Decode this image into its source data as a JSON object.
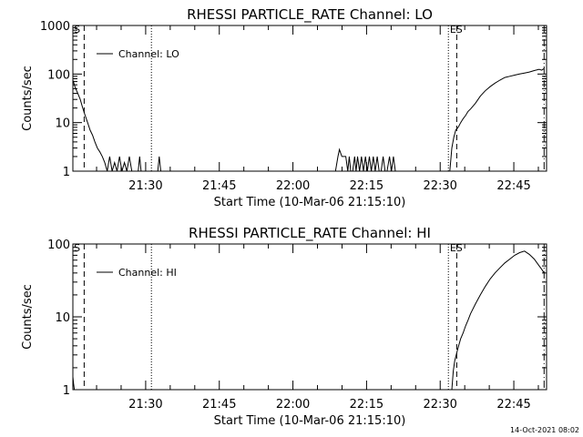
{
  "footer": {
    "timestamp": "14-Oct-2021 08:02"
  },
  "chart_data": [
    {
      "type": "line",
      "title": "RHESSI PARTICLE_RATE Channel: LO",
      "xlabel": "Start Time (10-Mar-06 21:15:10)",
      "ylabel": "Counts/sec",
      "x_unit": "minutes after 21:15:10",
      "xlim": [
        0,
        96.5
      ],
      "ylim": [
        1,
        1000
      ],
      "y_scale": "log",
      "y_ticks": [
        1,
        10,
        100,
        1000
      ],
      "y_tick_labels": [
        "1",
        "10",
        "100",
        "1000"
      ],
      "x_ticks": [
        14.83,
        29.83,
        44.83,
        59.83,
        74.83,
        89.83
      ],
      "x_tick_labels": [
        "21:30",
        "21:45",
        "22:00",
        "22:15",
        "22:30",
        "22:45"
      ],
      "legend": {
        "position": "top-left"
      },
      "series": [
        {
          "name": "Channel: LO",
          "x": [
            0,
            0.5,
            1,
            1.5,
            2,
            2.5,
            3,
            3.5,
            4,
            4.5,
            5,
            5.5,
            6,
            6.5,
            7,
            7.5,
            8,
            8.5,
            9,
            9.5,
            10,
            10.5,
            11,
            11.5,
            12,
            13.3,
            13.6,
            13.9,
            17.3,
            17.6,
            17.9,
            53.5,
            54,
            54.3,
            54.8,
            55.2,
            55.6,
            56,
            56.3,
            56.6,
            57,
            57.4,
            57.7,
            58,
            58.4,
            58.8,
            59.2,
            59.6,
            60,
            60.4,
            60.8,
            61.2,
            61.6,
            62,
            62.4,
            62.8,
            63.2,
            63.6,
            64,
            64.5,
            64.9,
            65.3,
            65.7,
            66.1,
            66.5,
            76.8,
            77.2,
            77.6,
            78,
            78.5,
            79,
            79.5,
            80,
            80.5,
            81,
            82,
            83,
            84,
            85,
            86,
            87,
            88,
            89,
            90,
            91,
            92,
            93,
            94,
            95,
            95.5,
            96
          ],
          "y": [
            75,
            52,
            40,
            30,
            20,
            14,
            10,
            7,
            5.5,
            4,
            3,
            2.5,
            2,
            1.5,
            1,
            2,
            1,
            1.5,
            1,
            2,
            1,
            1.5,
            1,
            2,
            1,
            1,
            2,
            1,
            1,
            2,
            1,
            1,
            2,
            2.8,
            2,
            2,
            2,
            1,
            2,
            1,
            1,
            2,
            1,
            2,
            1,
            2,
            1,
            2,
            1,
            2,
            1,
            2,
            1,
            2,
            1,
            1,
            2,
            1,
            1,
            2,
            1,
            2,
            1,
            1,
            1,
            1,
            3,
            5,
            7,
            8,
            10,
            12,
            14,
            17,
            19,
            25,
            35,
            45,
            55,
            65,
            75,
            85,
            90,
            95,
            100,
            105,
            110,
            118,
            125,
            120,
            130
          ]
        }
      ],
      "vlines": [
        {
          "x": 2.3,
          "style": "dashed"
        },
        {
          "x": 16.0,
          "style": "dotted"
        },
        {
          "x": 76.5,
          "style": "dotted"
        },
        {
          "x": 78.2,
          "style": "dashed"
        },
        {
          "x": 96.0,
          "style": "dashdot"
        }
      ],
      "annotations": [
        {
          "text": "S",
          "x": 0.2
        },
        {
          "text": "ES",
          "x": 76.8
        }
      ]
    },
    {
      "type": "line",
      "title": "RHESSI PARTICLE_RATE Channel: HI",
      "xlabel": "Start Time (10-Mar-06 21:15:10)",
      "ylabel": "Counts/sec",
      "x_unit": "minutes after 21:15:10",
      "xlim": [
        0,
        96.5
      ],
      "ylim": [
        1,
        100
      ],
      "y_scale": "log",
      "y_ticks": [
        1,
        10,
        100
      ],
      "y_tick_labels": [
        "1",
        "10",
        "100"
      ],
      "x_ticks": [
        14.83,
        29.83,
        44.83,
        59.83,
        74.83,
        89.83
      ],
      "x_tick_labels": [
        "21:30",
        "21:45",
        "22:00",
        "22:15",
        "22:30",
        "22:45"
      ],
      "legend": {
        "position": "top-left"
      },
      "series": [
        {
          "name": "Channel: HI",
          "x": [
            0,
            0.15,
            0.3,
            77.2,
            77.5,
            77.8,
            78.2,
            78.6,
            79,
            79.5,
            80,
            80.5,
            81,
            82,
            83,
            84,
            85,
            86,
            87,
            88,
            89,
            90,
            91,
            92,
            93,
            94,
            95,
            95.5,
            96
          ],
          "y": [
            1.5,
            1.2,
            1,
            1,
            1.8,
            2.5,
            3.2,
            4,
            5,
            6,
            7.5,
            9,
            11,
            15,
            20,
            26,
            33,
            40,
            47,
            55,
            62,
            70,
            76,
            80,
            72,
            62,
            50,
            45,
            40
          ]
        }
      ],
      "vlines": [
        {
          "x": 2.3,
          "style": "dashed"
        },
        {
          "x": 16.0,
          "style": "dotted"
        },
        {
          "x": 76.5,
          "style": "dotted"
        },
        {
          "x": 78.2,
          "style": "dashed"
        },
        {
          "x": 96.0,
          "style": "dashdot"
        }
      ],
      "annotations": [
        {
          "text": "S",
          "x": 0.2
        },
        {
          "text": "ES",
          "x": 76.8
        }
      ]
    }
  ]
}
